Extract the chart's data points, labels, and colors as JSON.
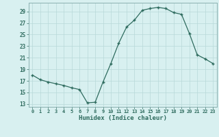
{
  "x": [
    0,
    1,
    2,
    3,
    4,
    5,
    6,
    7,
    8,
    9,
    10,
    11,
    12,
    13,
    14,
    15,
    16,
    17,
    18,
    19,
    20,
    21,
    22,
    23
  ],
  "y": [
    18.0,
    17.2,
    16.8,
    16.5,
    16.2,
    15.8,
    15.5,
    13.2,
    13.3,
    16.8,
    20.0,
    23.5,
    26.3,
    27.5,
    29.2,
    29.5,
    29.7,
    29.5,
    28.8,
    28.5,
    25.2,
    21.5,
    20.8,
    20.0
  ],
  "xlabel": "Humidex (Indice chaleur)",
  "xlim": [
    -0.5,
    23.5
  ],
  "ylim": [
    12.5,
    30.5
  ],
  "yticks": [
    13,
    15,
    17,
    19,
    21,
    23,
    25,
    27,
    29
  ],
  "xticks": [
    0,
    1,
    2,
    3,
    4,
    5,
    6,
    7,
    8,
    9,
    10,
    11,
    12,
    13,
    14,
    15,
    16,
    17,
    18,
    19,
    20,
    21,
    22,
    23
  ],
  "line_color": "#2e6b5e",
  "marker": "+",
  "bg_color": "#d8f0f0",
  "grid_color": "#b8d8d8",
  "tick_color": "#2e6b5e",
  "label_color": "#2e6b5e",
  "spine_color": "#8ab0b0"
}
